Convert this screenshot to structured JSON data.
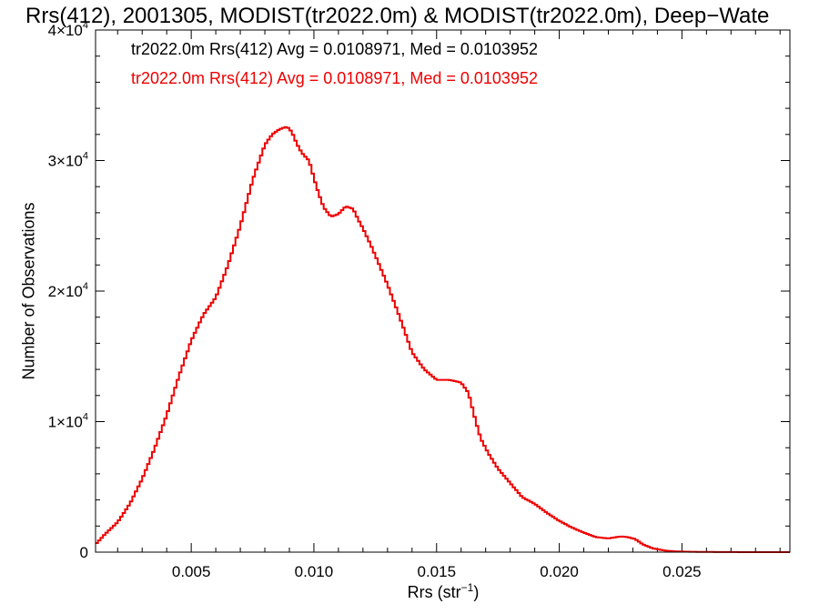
{
  "chart_data": {
    "type": "line",
    "title": "Rrs(412), 2001305, MODIST(tr2022.0m) & MODIST(tr2022.0m), Deep−Wate",
    "xlabel_base": "Rrs (str",
    "xlabel_sup": "−1",
    "xlabel_end": ")",
    "ylabel": "Number of Observations",
    "xlim": [
      0.0011,
      0.0294
    ],
    "ylim": [
      0,
      40000
    ],
    "grid": false,
    "x_ticks": [
      {
        "value": 0.005,
        "label": "0.005"
      },
      {
        "value": 0.01,
        "label": "0.010"
      },
      {
        "value": 0.015,
        "label": "0.015"
      },
      {
        "value": 0.02,
        "label": "0.020"
      },
      {
        "value": 0.025,
        "label": "0.025"
      }
    ],
    "y_ticks": [
      {
        "value": 0,
        "mant": "0",
        "exp": ""
      },
      {
        "value": 10000,
        "mant": "1×10",
        "exp": "4"
      },
      {
        "value": 20000,
        "mant": "2×10",
        "exp": "4"
      },
      {
        "value": 30000,
        "mant": "3×10",
        "exp": "4"
      },
      {
        "value": 40000,
        "mant": "4×10",
        "exp": "4"
      }
    ],
    "annotations": [
      {
        "text": "tr2022.0m Rrs(412) Avg = 0.0108971, Med = 0.0103952",
        "color": "#000000"
      },
      {
        "text": "tr2022.0m Rrs(412) Avg = 0.0108971, Med = 0.0103952",
        "color": "#ee0000"
      }
    ],
    "series": [
      {
        "color": "#ee0000",
        "x": [
          0.0011,
          0.0015,
          0.002,
          0.0025,
          0.003,
          0.0035,
          0.004,
          0.0045,
          0.005,
          0.0055,
          0.006,
          0.0065,
          0.007,
          0.0075,
          0.008,
          0.0083,
          0.0086,
          0.0089,
          0.0091,
          0.0093,
          0.0095,
          0.0098,
          0.0101,
          0.0104,
          0.0107,
          0.011,
          0.0113,
          0.0116,
          0.0118,
          0.012,
          0.0123,
          0.0126,
          0.013,
          0.0135,
          0.014,
          0.0145,
          0.015,
          0.0155,
          0.016,
          0.0163,
          0.0166,
          0.0168,
          0.0171,
          0.0175,
          0.018,
          0.0185,
          0.019,
          0.0195,
          0.02,
          0.0205,
          0.021,
          0.0215,
          0.022,
          0.0225,
          0.0228,
          0.0231,
          0.0234,
          0.0238,
          0.0243,
          0.0248,
          0.0253,
          0.0258,
          0.0263,
          0.027,
          0.028,
          0.0294
        ],
        "y": [
          600,
          1400,
          2300,
          3700,
          5600,
          7900,
          10500,
          13500,
          16200,
          18200,
          19500,
          22000,
          25000,
          28500,
          31200,
          32000,
          32400,
          32600,
          32200,
          31300,
          30600,
          30000,
          28000,
          26400,
          25700,
          25900,
          26500,
          26300,
          25500,
          24800,
          23600,
          22300,
          20500,
          18000,
          15300,
          14000,
          13200,
          13200,
          13000,
          12200,
          10000,
          8700,
          7600,
          6400,
          5300,
          4200,
          3700,
          3000,
          2400,
          1900,
          1500,
          1150,
          1050,
          1200,
          1150,
          1000,
          600,
          300,
          120,
          50,
          30,
          20,
          10,
          5,
          0,
          0
        ]
      }
    ]
  }
}
